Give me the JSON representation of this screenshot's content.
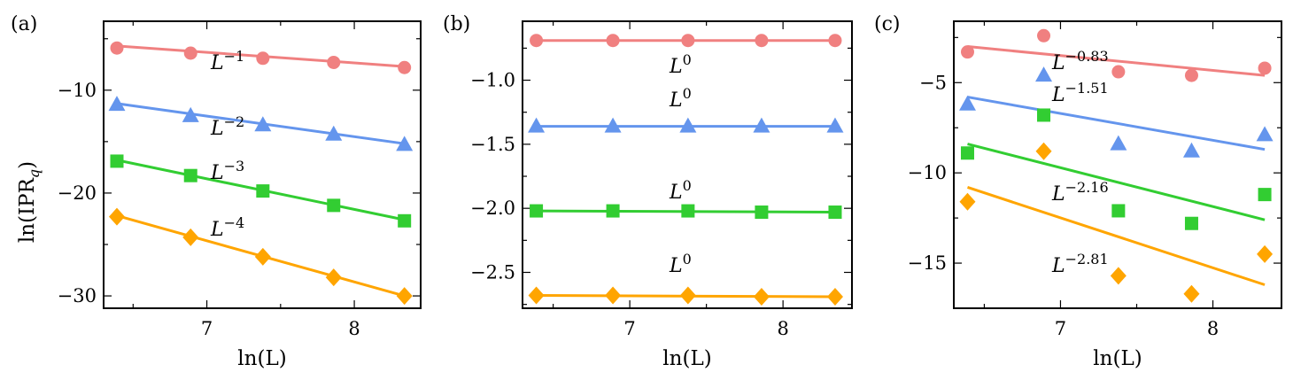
{
  "figure": {
    "ylabel_prefix": "ln(IPR",
    "ylabel_sub": "q",
    "ylabel_suffix": ")"
  },
  "chart_data": [
    {
      "panel": "(a)",
      "type": "scatter",
      "xlabel": "ln(L)",
      "xlim": [
        6.3,
        8.45
      ],
      "ylim": [
        -31.2,
        -3.3
      ],
      "xticks": [
        7,
        8
      ],
      "yticks": [
        -10,
        -20,
        -30
      ],
      "ytick_labels": [
        "−10",
        "−20",
        "−30"
      ],
      "grid": false,
      "x": [
        6.39,
        6.89,
        7.38,
        7.86,
        8.34
      ],
      "series": [
        {
          "marker": "circle",
          "color": "#f08080",
          "values": [
            -5.9,
            -6.4,
            -6.9,
            -7.3,
            -7.8
          ],
          "fit": [
            -5.7,
            -7.7
          ],
          "annotation_base": "L",
          "annotation_exp": "−1"
        },
        {
          "marker": "triangle",
          "color": "#6495ed",
          "values": [
            -11.4,
            -12.5,
            -13.4,
            -14.3,
            -15.3
          ],
          "fit": [
            -11.3,
            -15.2
          ],
          "annotation_base": "L",
          "annotation_exp": "−2"
        },
        {
          "marker": "square",
          "color": "#32cd32",
          "values": [
            -16.9,
            -18.3,
            -19.8,
            -21.2,
            -22.7
          ],
          "fit": [
            -16.8,
            -22.6
          ],
          "annotation_base": "L",
          "annotation_exp": "−3"
        },
        {
          "marker": "diamond",
          "color": "#ffa500",
          "values": [
            -22.3,
            -24.3,
            -26.2,
            -28.2,
            -30.0
          ],
          "fit": [
            -22.2,
            -30.0
          ],
          "annotation_base": "L",
          "annotation_exp": "−4"
        }
      ]
    },
    {
      "panel": "(b)",
      "type": "scatter",
      "xlabel": "ln(L)",
      "xlim": [
        6.3,
        8.45
      ],
      "ylim": [
        -2.78,
        -0.54
      ],
      "xticks": [
        7,
        8
      ],
      "yticks": [
        -1.0,
        -1.5,
        -2.0,
        -2.5
      ],
      "ytick_labels": [
        "−1.0",
        "−1.5",
        "−2.0",
        "−2.5"
      ],
      "grid": false,
      "x": [
        6.39,
        6.89,
        7.38,
        7.86,
        8.34
      ],
      "series": [
        {
          "marker": "circle",
          "color": "#f08080",
          "values": [
            -0.69,
            -0.69,
            -0.69,
            -0.69,
            -0.69
          ],
          "fit": [
            -0.69,
            -0.69
          ],
          "annotation_base": "L",
          "annotation_exp": "0"
        },
        {
          "marker": "triangle",
          "color": "#6495ed",
          "values": [
            -1.36,
            -1.36,
            -1.36,
            -1.36,
            -1.36
          ],
          "fit": [
            -1.36,
            -1.36
          ],
          "annotation_base": "L",
          "annotation_exp": "0"
        },
        {
          "marker": "square",
          "color": "#32cd32",
          "values": [
            -2.02,
            -2.02,
            -2.02,
            -2.03,
            -2.03
          ],
          "fit": [
            -2.02,
            -2.03
          ],
          "annotation_base": "L",
          "annotation_exp": "0"
        },
        {
          "marker": "diamond",
          "color": "#ffa500",
          "values": [
            -2.68,
            -2.68,
            -2.68,
            -2.69,
            -2.69
          ],
          "fit": [
            -2.68,
            -2.69
          ],
          "annotation_base": "L",
          "annotation_exp": "0"
        }
      ]
    },
    {
      "panel": "(c)",
      "type": "scatter",
      "xlabel": "ln(L)",
      "xlim": [
        6.3,
        8.45
      ],
      "ylim": [
        -17.5,
        -1.6
      ],
      "xticks": [
        7,
        8
      ],
      "yticks": [
        -5,
        -10,
        -15
      ],
      "ytick_labels": [
        "−5",
        "−10",
        "−15"
      ],
      "grid": false,
      "x": [
        6.39,
        6.89,
        7.38,
        7.86,
        8.34
      ],
      "series": [
        {
          "marker": "circle",
          "color": "#f08080",
          "values": [
            -3.3,
            -2.4,
            -4.4,
            -4.6,
            -4.2
          ],
          "fit": [
            -3.0,
            -4.6
          ],
          "annotation_base": "L",
          "annotation_exp": "−0.83"
        },
        {
          "marker": "triangle",
          "color": "#6495ed",
          "values": [
            -6.2,
            -4.6,
            -8.4,
            -8.8,
            -7.9
          ],
          "fit": [
            -5.8,
            -8.7
          ],
          "annotation_base": "L",
          "annotation_exp": "−1.51"
        },
        {
          "marker": "square",
          "color": "#32cd32",
          "values": [
            -8.9,
            -6.8,
            -12.1,
            -12.8,
            -11.2
          ],
          "fit": [
            -8.4,
            -12.6
          ],
          "annotation_base": "L",
          "annotation_exp": "−2.16"
        },
        {
          "marker": "diamond",
          "color": "#ffa500",
          "values": [
            -11.6,
            -8.8,
            -15.7,
            -16.7,
            -14.5
          ],
          "fit": [
            -10.8,
            -16.2
          ],
          "annotation_base": "L",
          "annotation_exp": "−2.81"
        }
      ]
    }
  ]
}
